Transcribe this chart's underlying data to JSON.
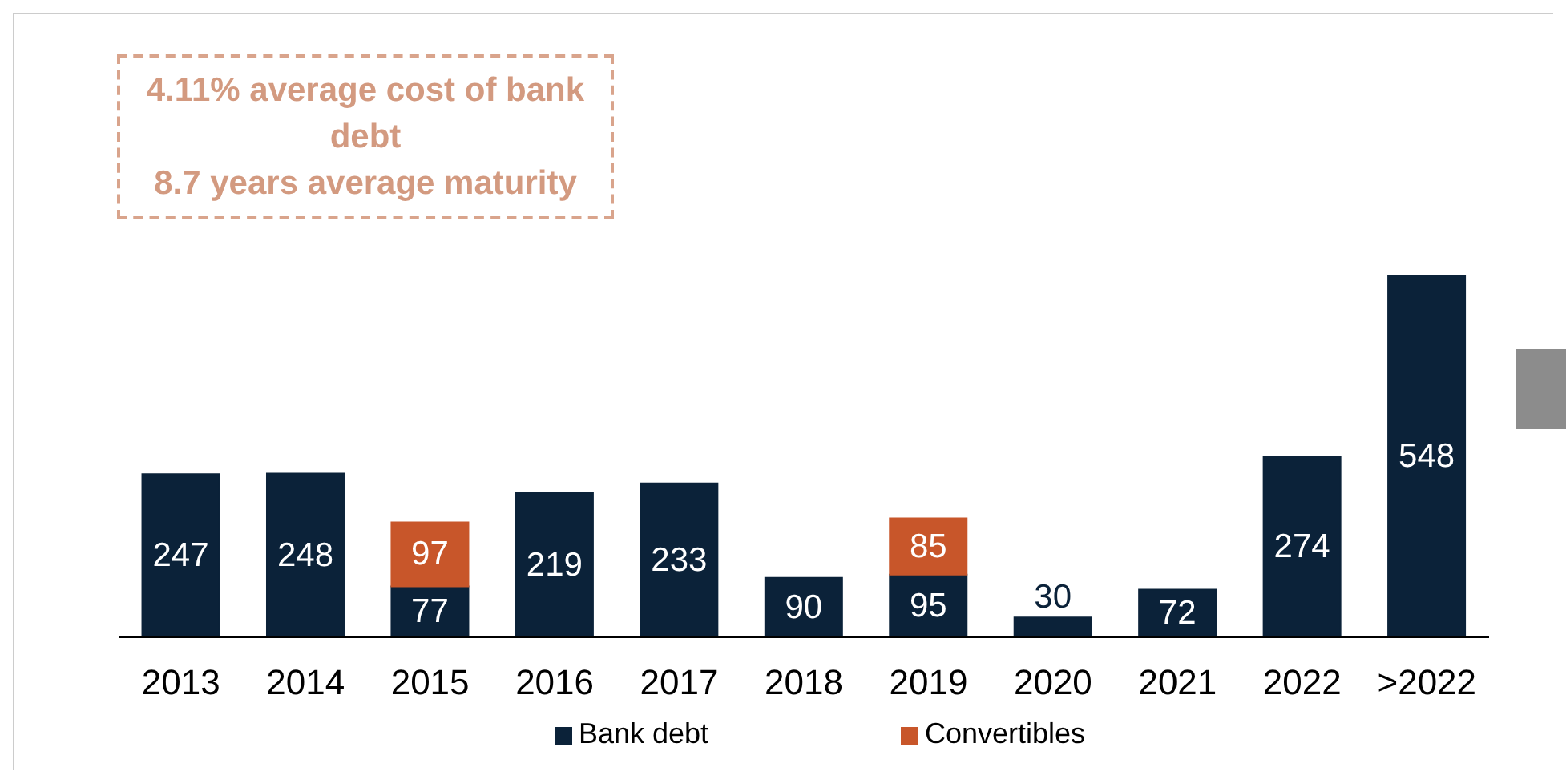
{
  "chart_data": {
    "type": "bar",
    "stacked": true,
    "data_labels": true,
    "legend": "bottom",
    "annotations": [
      "4.11% average cost of bank debt\n8.7 years average maturity"
    ],
    "categories": [
      "2013",
      "2014",
      "2015",
      "2016",
      "2017",
      "2018",
      "2019",
      "2020",
      "2021",
      "2022",
      ">2022"
    ],
    "series": [
      {
        "name": "Bank debt",
        "color": "#0b2239",
        "values": [
          247,
          248,
          77,
          219,
          233,
          90,
          95,
          30,
          72,
          274,
          548
        ]
      },
      {
        "name": "Convertibles",
        "color": "#c8562a",
        "values": [
          null,
          null,
          97,
          null,
          null,
          null,
          85,
          null,
          null,
          null,
          null
        ]
      }
    ]
  }
}
